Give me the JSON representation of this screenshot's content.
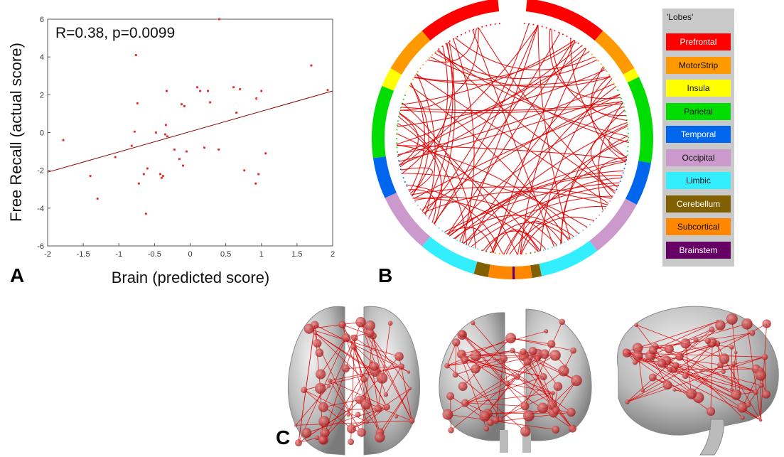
{
  "panels": {
    "a": "A",
    "b": "B",
    "c": "C"
  },
  "chart_data": [
    {
      "type": "scatter",
      "annotation": "R=0.38, p=0.0099",
      "xlabel": "Brain (predicted score)",
      "ylabel": "Free Recall (actual score)",
      "xlim": [
        -2,
        2
      ],
      "ylim": [
        -6,
        6
      ],
      "xticks": [
        -2,
        -1.5,
        -1,
        -0.5,
        0,
        0.5,
        1,
        1.5,
        2
      ],
      "yticks": [
        -6,
        -4,
        -2,
        0,
        2,
        4,
        6
      ],
      "grid": false,
      "point_color": "#e03030",
      "line_color": "#8b0000",
      "fit_line": {
        "x": [
          -2,
          2
        ],
        "y": [
          -2.1,
          2.2
        ]
      },
      "points": [
        {
          "x": -1.78,
          "y": -0.4
        },
        {
          "x": -1.4,
          "y": -2.3
        },
        {
          "x": -1.3,
          "y": -3.5
        },
        {
          "x": -1.05,
          "y": -1.3
        },
        {
          "x": -0.82,
          "y": -0.7
        },
        {
          "x": -0.78,
          "y": 0.05
        },
        {
          "x": -0.76,
          "y": 4.1
        },
        {
          "x": -0.74,
          "y": 1.55
        },
        {
          "x": -0.72,
          "y": -2.7
        },
        {
          "x": -0.65,
          "y": -2.2
        },
        {
          "x": -0.62,
          "y": -4.3
        },
        {
          "x": -0.6,
          "y": -1.9
        },
        {
          "x": -0.48,
          "y": 0.0
        },
        {
          "x": -0.42,
          "y": -2.2
        },
        {
          "x": -0.4,
          "y": -2.4
        },
        {
          "x": -0.38,
          "y": -2.3
        },
        {
          "x": -0.35,
          "y": -0.1
        },
        {
          "x": -0.34,
          "y": 0.4
        },
        {
          "x": -0.33,
          "y": 2.2
        },
        {
          "x": -0.32,
          "y": -0.2
        },
        {
          "x": -0.22,
          "y": -0.9
        },
        {
          "x": -0.15,
          "y": -1.4
        },
        {
          "x": -0.12,
          "y": 1.5
        },
        {
          "x": -0.1,
          "y": -1.75
        },
        {
          "x": -0.08,
          "y": 1.4
        },
        {
          "x": -0.05,
          "y": -1.0
        },
        {
          "x": 0.1,
          "y": 2.4
        },
        {
          "x": 0.14,
          "y": 2.2
        },
        {
          "x": 0.2,
          "y": -0.8
        },
        {
          "x": 0.25,
          "y": 2.2
        },
        {
          "x": 0.28,
          "y": 1.6
        },
        {
          "x": 0.4,
          "y": -0.9
        },
        {
          "x": 0.41,
          "y": 6.0
        },
        {
          "x": 0.61,
          "y": 2.4
        },
        {
          "x": 0.65,
          "y": 1.05
        },
        {
          "x": 0.7,
          "y": 2.3
        },
        {
          "x": 0.76,
          "y": -2.0
        },
        {
          "x": 0.92,
          "y": -2.7
        },
        {
          "x": 0.93,
          "y": 1.8
        },
        {
          "x": 0.96,
          "y": -2.2
        },
        {
          "x": 1.0,
          "y": 2.2
        },
        {
          "x": 1.06,
          "y": -1.1
        },
        {
          "x": 1.7,
          "y": 3.55
        },
        {
          "x": 1.93,
          "y": 2.25
        }
      ]
    },
    {
      "type": "chord",
      "legend": {
        "title": "'Lobes'",
        "placement": "right",
        "items": [
          {
            "label": "Prefrontal",
            "color": "#ff0000",
            "text": "#ffffff"
          },
          {
            "label": "MotorStrip",
            "color": "#ff9900",
            "text": "#111111"
          },
          {
            "label": "Insula",
            "color": "#ffff00",
            "text": "#111111"
          },
          {
            "label": "Parietal",
            "color": "#00dd00",
            "text": "#111111"
          },
          {
            "label": "Temporal",
            "color": "#0066ee",
            "text": "#ffffff"
          },
          {
            "label": "Occipital",
            "color": "#cc99cc",
            "text": "#111111"
          },
          {
            "label": "Limbic",
            "color": "#33eeff",
            "text": "#111111"
          },
          {
            "label": "Cerebellum",
            "color": "#806000",
            "text": "#ffffff"
          },
          {
            "label": "Subcortical",
            "color": "#ff8800",
            "text": "#111111"
          },
          {
            "label": "Brainstem",
            "color": "#660066",
            "text": "#ffffff"
          }
        ]
      },
      "edge_color": "#e00000"
    }
  ]
}
